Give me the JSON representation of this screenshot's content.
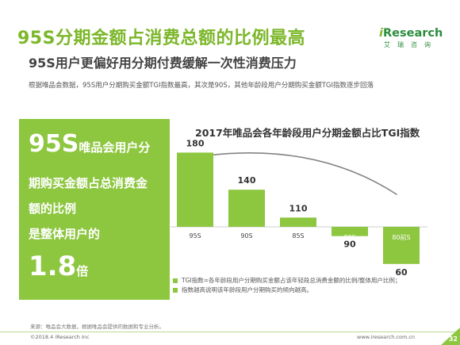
{
  "header": {
    "title": "95S分期金额占消费总额的比例最高",
    "subtitle": "95S用户更偏好用分期付费缓解一次性消费压力",
    "description": "根据唯品会数据，95S用户分期购买金额TGI指数最高，其次是90S，其他年龄段用户分期购买金额TGI指数逐步回落"
  },
  "logo": {
    "prefix": "i",
    "main": "Research",
    "sub": "艾瑞咨询"
  },
  "highlight": {
    "line1_big": "95S",
    "line1_rest": "唯品会用户分",
    "line2": "期购买金额占总消费金",
    "line3": "额的比例",
    "line4": "是整体用户的",
    "value": "1.8",
    "unit": "倍"
  },
  "chart_data": {
    "type": "bar",
    "title": "2017年唯品会各年龄段用户分期金额占比TGI指数",
    "categories": [
      "95S",
      "90S",
      "85S",
      "80S",
      "80前S"
    ],
    "values": [
      180,
      140,
      110,
      90,
      60
    ],
    "baseline": 100,
    "series_colors": [
      "#8dc63f"
    ],
    "grid": false,
    "legend": [
      "TGI指数=各年龄段用户分期购买金额占该年轻段总消费金额的比例/整体用户比例；",
      "指数越高说明该年龄段用户分期购买的倾向越高。"
    ]
  },
  "footer": {
    "source": "来源：唯品会大数据，根据唯品会提供的数据和专业分析。",
    "copyright": "©2018.4 iResearch Inc",
    "website": "www.iresearch.com.cn",
    "page": "32"
  }
}
